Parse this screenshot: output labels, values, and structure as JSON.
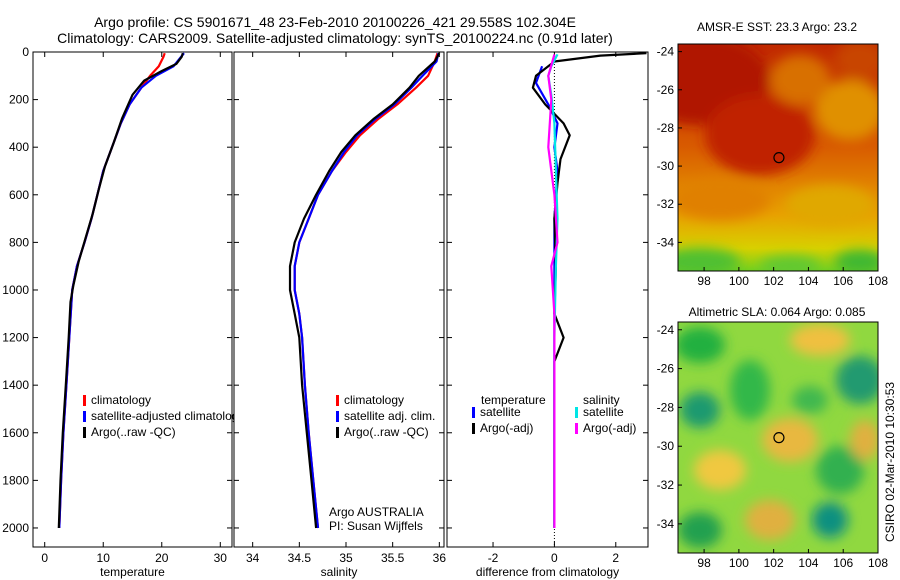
{
  "title_line1": "Argo profile: CS 5901671_48 23-Feb-2010 20100226_421 29.558S 102.304E",
  "title_line2": "Climatology: CARS2009. Satellite-adjusted climatology: synTS_20100224.nc (0.91d later)",
  "side_note": "CSIRO 02-Mar-2010 10:30:53",
  "colors": {
    "climatology": "#ff0000",
    "satellite": "#0000ff",
    "argo": "#000000",
    "salinity_satellite": "#00e5e5",
    "salinity_argo": "#ff00ff"
  },
  "chart_data": [
    {
      "type": "line",
      "id": "temperature",
      "xlabel": "temperature",
      "xlim": [
        -2,
        32
      ],
      "ylim": [
        0,
        2080
      ],
      "y_reversed": true,
      "xticks": [
        0,
        10,
        20,
        30
      ],
      "yticks": [
        0,
        200,
        400,
        600,
        800,
        1000,
        1200,
        1400,
        1600,
        1800,
        2000
      ],
      "legend": [
        "climatology",
        "satellite-adjusted climatology",
        "Argo(..raw -QC)"
      ],
      "series": [
        {
          "name": "climatology",
          "role": "climatology",
          "points": [
            [
              20.5,
              5
            ],
            [
              20.3,
              20
            ],
            [
              19.5,
              60
            ],
            [
              18.0,
              100
            ],
            [
              16.5,
              150
            ],
            [
              14.5,
              220
            ],
            [
              13.0,
              300
            ],
            [
              11.5,
              400
            ],
            [
              10.0,
              500
            ],
            [
              9.0,
              600
            ],
            [
              8.0,
              700
            ],
            [
              6.8,
              800
            ],
            [
              5.5,
              900
            ],
            [
              4.7,
              1000
            ],
            [
              4.2,
              1200
            ],
            [
              3.7,
              1400
            ],
            [
              3.2,
              1600
            ],
            [
              2.8,
              1800
            ],
            [
              2.5,
              2000
            ]
          ]
        },
        {
          "name": "satellite-adjusted climatology",
          "role": "satellite",
          "points": [
            [
              23.8,
              5
            ],
            [
              23.0,
              30
            ],
            [
              22.0,
              60
            ],
            [
              19.0,
              100
            ],
            [
              16.5,
              150
            ],
            [
              14.5,
              220
            ],
            [
              13.0,
              300
            ],
            [
              11.5,
              400
            ],
            [
              10.0,
              500
            ],
            [
              9.0,
              600
            ],
            [
              8.0,
              700
            ],
            [
              6.8,
              800
            ],
            [
              5.5,
              900
            ],
            [
              4.7,
              1000
            ],
            [
              4.2,
              1200
            ],
            [
              3.7,
              1400
            ],
            [
              3.2,
              1600
            ],
            [
              2.8,
              1800
            ],
            [
              2.5,
              2000
            ]
          ]
        },
        {
          "name": "Argo(..raw -QC)",
          "role": "argo",
          "points": [
            [
              23.6,
              5
            ],
            [
              23.4,
              20
            ],
            [
              22.5,
              50
            ],
            [
              20.0,
              80
            ],
            [
              17.0,
              120
            ],
            [
              15.0,
              180
            ],
            [
              13.2,
              280
            ],
            [
              11.8,
              380
            ],
            [
              10.3,
              480
            ],
            [
              9.2,
              580
            ],
            [
              8.2,
              680
            ],
            [
              7.0,
              780
            ],
            [
              5.8,
              880
            ],
            [
              4.9,
              980
            ],
            [
              4.4,
              1050
            ],
            [
              4.1,
              1200
            ],
            [
              3.6,
              1400
            ],
            [
              3.1,
              1600
            ],
            [
              2.7,
              1800
            ],
            [
              2.4,
              2000
            ]
          ]
        }
      ]
    },
    {
      "type": "line",
      "id": "salinity",
      "xlabel": "salinity",
      "xlim": [
        33.8,
        36.05
      ],
      "ylim": [
        0,
        2080
      ],
      "y_reversed": true,
      "xticks": [
        34,
        34.5,
        35,
        35.5,
        36
      ],
      "xtick_labels": [
        "34",
        "34.5",
        "35",
        "35.5",
        "36"
      ],
      "legend": [
        "climatology",
        "satellite adj. clim.",
        "Argo(..raw -QC)"
      ],
      "annotation": [
        "Argo AUSTRALIA",
        "PI: Susan Wijffels"
      ],
      "series": [
        {
          "name": "climatology",
          "role": "climatology",
          "points": [
            [
              35.98,
              5
            ],
            [
              35.95,
              40
            ],
            [
              35.88,
              100
            ],
            [
              35.75,
              150
            ],
            [
              35.55,
              220
            ],
            [
              35.35,
              280
            ],
            [
              35.15,
              350
            ],
            [
              35.0,
              420
            ],
            [
              34.85,
              500
            ],
            [
              34.7,
              600
            ],
            [
              34.6,
              700
            ],
            [
              34.5,
              800
            ],
            [
              34.45,
              900
            ],
            [
              34.45,
              1000
            ],
            [
              34.5,
              1100
            ],
            [
              34.53,
              1200
            ],
            [
              34.56,
              1400
            ],
            [
              34.6,
              1600
            ],
            [
              34.65,
              1800
            ],
            [
              34.7,
              2000
            ]
          ]
        },
        {
          "name": "satellite adj. clim.",
          "role": "satellite",
          "points": [
            [
              35.99,
              5
            ],
            [
              35.97,
              40
            ],
            [
              35.82,
              100
            ],
            [
              35.7,
              150
            ],
            [
              35.52,
              220
            ],
            [
              35.32,
              280
            ],
            [
              35.12,
              350
            ],
            [
              34.98,
              420
            ],
            [
              34.85,
              500
            ],
            [
              34.7,
              600
            ],
            [
              34.6,
              700
            ],
            [
              34.5,
              800
            ],
            [
              34.45,
              900
            ],
            [
              34.45,
              1000
            ],
            [
              34.5,
              1100
            ],
            [
              34.53,
              1200
            ],
            [
              34.56,
              1400
            ],
            [
              34.6,
              1600
            ],
            [
              34.65,
              1800
            ],
            [
              34.7,
              2000
            ]
          ]
        },
        {
          "name": "Argo(..raw -QC)",
          "role": "argo",
          "points": [
            [
              36.0,
              5
            ],
            [
              35.95,
              40
            ],
            [
              35.78,
              100
            ],
            [
              35.68,
              150
            ],
            [
              35.5,
              220
            ],
            [
              35.3,
              280
            ],
            [
              35.1,
              350
            ],
            [
              34.95,
              420
            ],
            [
              34.82,
              500
            ],
            [
              34.68,
              600
            ],
            [
              34.55,
              700
            ],
            [
              34.45,
              800
            ],
            [
              34.4,
              900
            ],
            [
              34.4,
              1000
            ],
            [
              34.45,
              1100
            ],
            [
              34.5,
              1200
            ],
            [
              34.53,
              1400
            ],
            [
              34.58,
              1600
            ],
            [
              34.63,
              1800
            ],
            [
              34.68,
              2000
            ]
          ]
        }
      ]
    },
    {
      "type": "line",
      "id": "difference",
      "xlabel": "difference from climatology",
      "xlim": [
        -3.5,
        3.05
      ],
      "ylim": [
        0,
        2080
      ],
      "y_reversed": true,
      "xticks": [
        -2,
        0,
        2
      ],
      "legend_temperature": {
        "title": "temperature",
        "items": [
          "satellite",
          "Argo(-adj)"
        ]
      },
      "legend_salinity": {
        "title": "salinity",
        "items": [
          "satellite",
          "Argo(-adj)"
        ]
      },
      "series": [
        {
          "name": "temperature satellite",
          "role": "satellite",
          "points": [
            [
              -0.4,
              60
            ],
            [
              -0.6,
              130
            ],
            [
              -0.2,
              220
            ],
            [
              0.1,
              300
            ],
            [
              0.0,
              400
            ],
            [
              0.1,
              500
            ],
            [
              0.0,
              700
            ],
            [
              0.0,
              1000
            ],
            [
              0.0,
              1400
            ],
            [
              0.0,
              2000
            ]
          ]
        },
        {
          "name": "temperature Argo(-adj)",
          "role": "argo",
          "points": [
            [
              3.0,
              5
            ],
            [
              1.5,
              15
            ],
            [
              0.0,
              40
            ],
            [
              -0.6,
              100
            ],
            [
              -0.7,
              150
            ],
            [
              -0.3,
              220
            ],
            [
              0.3,
              300
            ],
            [
              0.5,
              350
            ],
            [
              0.2,
              450
            ],
            [
              0.1,
              550
            ],
            [
              0.0,
              700
            ],
            [
              0.05,
              900
            ],
            [
              0.0,
              1100
            ],
            [
              0.3,
              1200
            ],
            [
              0.0,
              1300
            ],
            [
              0.0,
              1500
            ],
            [
              0.0,
              2000
            ]
          ]
        },
        {
          "name": "salinity satellite",
          "role": "salinity_satellite",
          "points": [
            [
              0.1,
              10
            ],
            [
              -0.1,
              60
            ],
            [
              -0.2,
              100
            ],
            [
              -0.1,
              180
            ],
            [
              0.0,
              300
            ],
            [
              0.05,
              500
            ],
            [
              0.1,
              700
            ],
            [
              0.05,
              900
            ],
            [
              0.0,
              1200
            ],
            [
              0.0,
              1600
            ],
            [
              0.0,
              2000
            ]
          ]
        },
        {
          "name": "salinity Argo(-adj)",
          "role": "salinity_argo",
          "points": [
            [
              0.0,
              10
            ],
            [
              -0.2,
              100
            ],
            [
              -0.1,
              200
            ],
            [
              -0.2,
              400
            ],
            [
              0.0,
              600
            ],
            [
              0.1,
              800
            ],
            [
              -0.1,
              900
            ],
            [
              0.0,
              1100
            ],
            [
              0.0,
              1400
            ],
            [
              0.0,
              2000
            ]
          ]
        }
      ]
    },
    {
      "type": "heatmap",
      "id": "sst_map",
      "title": "AMSR-E SST: 23.3 Argo: 23.2",
      "xlim": [
        96.5,
        108
      ],
      "ylim": [
        -35.5,
        -23.6
      ],
      "xticks": [
        98,
        100,
        102,
        104,
        106,
        108
      ],
      "yticks": [
        -24,
        -26,
        -28,
        -30,
        -32,
        -34
      ],
      "marker": {
        "lon": 102.304,
        "lat": -29.558
      }
    },
    {
      "type": "heatmap",
      "id": "sla_map",
      "title": "Altimetric SLA: 0.064 Argo: 0.085",
      "xlim": [
        96.5,
        108
      ],
      "ylim": [
        -35.5,
        -23.6
      ],
      "xticks": [
        98,
        100,
        102,
        104,
        106,
        108
      ],
      "yticks": [
        -24,
        -26,
        -28,
        -30,
        -32,
        -34
      ],
      "marker": {
        "lon": 102.304,
        "lat": -29.558
      }
    }
  ]
}
